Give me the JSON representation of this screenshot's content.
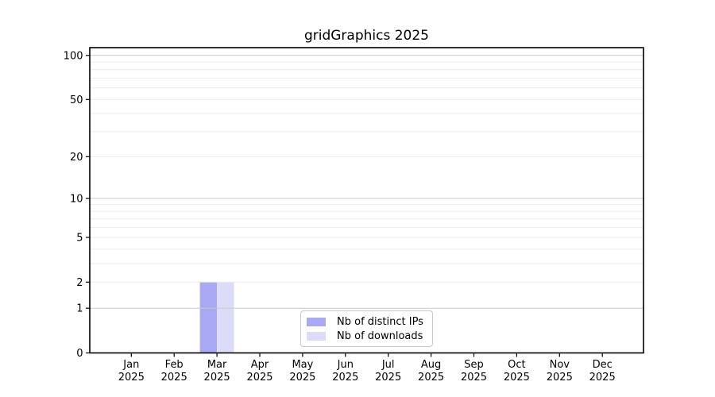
{
  "chart_data": {
    "type": "bar",
    "title": "gridGraphics 2025",
    "categories": [
      "Jan",
      "Feb",
      "Mar",
      "Apr",
      "May",
      "Jun",
      "Jul",
      "Aug",
      "Sep",
      "Oct",
      "Nov",
      "Dec"
    ],
    "category_year": "2025",
    "series": [
      {
        "name": "Nb of distinct IPs",
        "color": "#a9a9f3",
        "values": [
          0,
          0,
          2,
          0,
          0,
          0,
          0,
          0,
          0,
          0,
          0,
          0
        ]
      },
      {
        "name": "Nb of downloads",
        "color": "#dcdcf8",
        "values": [
          0,
          0,
          2,
          0,
          0,
          0,
          0,
          0,
          0,
          0,
          0,
          0
        ]
      }
    ],
    "xlabel": "",
    "ylabel": "",
    "yscale": "log1p",
    "yticks": [
      0,
      1,
      2,
      5,
      10,
      20,
      50,
      100
    ],
    "ylim": [
      0,
      113
    ],
    "grid": "both",
    "legend_position": "lower center",
    "colors": {
      "major_grid": "#c9c9c9",
      "minor_grid": "#ebebeb",
      "axis": "#000000",
      "background": "#ffffff"
    }
  }
}
